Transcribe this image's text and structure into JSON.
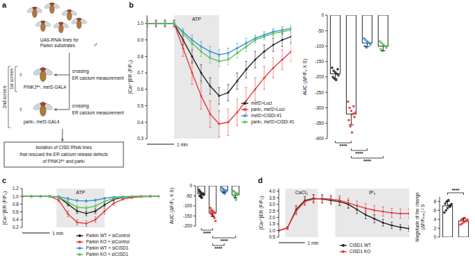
{
  "diagram": {
    "panel_label": "a",
    "library_label": [
      "UAS-RNAi lines for",
      "Parkin substrates"
    ],
    "male_symbol": "♂",
    "screens": [
      "1st screen",
      "2nd screen"
    ],
    "crosses": [
      {
        "female_symbol": "♀",
        "genotype": "PINK1ᴮ⁹, mef2-GAL4",
        "action": "crossing",
        "readout": "ER calcium measurement"
      },
      {
        "female_symbol": "♀",
        "genotype": "park¹, mef2-GAL4",
        "action": "crossing",
        "readout": "ER calcium measurement"
      }
    ],
    "result": [
      "Isolation of CISD RNAi lines",
      "that rescued the ER calcium release defects",
      "of PINK1ᴮ⁹ and park¹"
    ]
  },
  "chart_data": [
    {
      "type": "line",
      "panel_label": "b",
      "y_label": "[Ca²⁺]ER (F/F₀)",
      "x": [
        0,
        20,
        40,
        60,
        80,
        100,
        120,
        140,
        160,
        180,
        200,
        220,
        240,
        260,
        280,
        300,
        320
      ],
      "xlim": [
        0,
        320
      ],
      "ylim": [
        0.3,
        1.05
      ],
      "yticks": [
        0.3,
        0.4,
        0.5,
        0.6,
        0.7,
        0.8,
        0.9,
        {
          "value": 1,
          "label": "1.0"
        }
      ],
      "tick_labels": "y",
      "legend": "lower right",
      "annotations": [
        {
          "text": "ATP",
          "x_start": 60,
          "x_end": 160
        }
      ],
      "scale_bar": {
        "text": "1 min",
        "length": 60
      },
      "series": [
        {
          "name": "mef2>Luci",
          "color": "#222222",
          "values": [
            1,
            1,
            1,
            1,
            0.9,
            0.8,
            0.7,
            0.62,
            0.56,
            0.58,
            0.65,
            0.72,
            0.78,
            0.83,
            0.87,
            0.9,
            0.92
          ],
          "errors": [
            0.02,
            0.02,
            0.02,
            0.02,
            0.03,
            0.04,
            0.05,
            0.05,
            0.05,
            0.05,
            0.05,
            0.05,
            0.05,
            0.04,
            0.04,
            0.04,
            0.04
          ]
        },
        {
          "name": "park¹, mef2>Luci",
          "color": "#e8363a",
          "values": [
            1,
            1,
            1,
            1,
            0.85,
            0.7,
            0.56,
            0.45,
            0.39,
            0.4,
            0.46,
            0.53,
            0.6,
            0.67,
            0.73,
            0.78,
            0.83
          ],
          "errors": [
            0.02,
            0.02,
            0.02,
            0.02,
            0.05,
            0.07,
            0.08,
            0.08,
            0.08,
            0.08,
            0.08,
            0.08,
            0.07,
            0.07,
            0.06,
            0.06,
            0.06
          ]
        },
        {
          "name": "mef2>CISDi #1",
          "color": "#3a8fd6",
          "values": [
            1,
            1,
            1,
            1,
            0.95,
            0.9,
            0.86,
            0.83,
            0.81,
            0.82,
            0.85,
            0.88,
            0.91,
            0.93,
            0.95,
            0.96,
            0.97
          ],
          "errors": [
            0.01,
            0.01,
            0.01,
            0.01,
            0.02,
            0.03,
            0.03,
            0.03,
            0.03,
            0.03,
            0.03,
            0.03,
            0.02,
            0.02,
            0.02,
            0.02,
            0.02
          ]
        },
        {
          "name": "park¹, mef2>CISDi #1",
          "color": "#5cc05a",
          "values": [
            1,
            1,
            1,
            1,
            0.94,
            0.88,
            0.83,
            0.79,
            0.77,
            0.78,
            0.82,
            0.86,
            0.9,
            0.92,
            0.94,
            0.95,
            0.96
          ],
          "errors": [
            0.01,
            0.01,
            0.01,
            0.01,
            0.02,
            0.03,
            0.03,
            0.03,
            0.03,
            0.03,
            0.03,
            0.03,
            0.02,
            0.02,
            0.02,
            0.02,
            0.02
          ]
        }
      ]
    },
    {
      "type": "bar",
      "y_label": "AUC (ΔF/F₀ X S)",
      "categories": [
        null,
        null,
        null,
        null
      ],
      "values": [
        -190,
        -320,
        -90,
        -100
      ],
      "errors": [
        15,
        35,
        12,
        15
      ],
      "colors": [
        "#222222",
        "#e8363a",
        "#3a8fd6",
        "#5cc05a"
      ],
      "points": [
        [
          -170,
          -180,
          -185,
          -190,
          -195,
          -200,
          -205,
          -210,
          -175
        ],
        [
          -280,
          -300,
          -310,
          -320,
          -330,
          -340,
          -360,
          -380,
          -295,
          -315
        ],
        [
          -75,
          -80,
          -85,
          -90,
          -95,
          -100,
          -105,
          -88
        ],
        [
          -85,
          -90,
          -95,
          -100,
          -105,
          -110,
          -115,
          -98
        ]
      ],
      "ylim": [
        -400,
        0
      ],
      "yticks": [
        0,
        -50,
        -100,
        -150,
        -200,
        -250,
        -300,
        -350,
        -400
      ],
      "tick_labels": "y",
      "significance": [
        {
          "from": 0,
          "to": 1,
          "label": "****"
        },
        {
          "from": 1,
          "to": 2,
          "label": "****"
        },
        {
          "from": 1,
          "to": 3,
          "label": "****"
        }
      ]
    },
    {
      "type": "line",
      "panel_label": "c",
      "y_label": "[Ca²⁺]ER (F/F₀)",
      "x": [
        0,
        20,
        40,
        60,
        80,
        100,
        120,
        140,
        160,
        180,
        200,
        220,
        240,
        260,
        280,
        300
      ],
      "xlim": [
        0,
        300
      ],
      "ylim": [
        0.2,
        1.2
      ],
      "yticks": [
        0.2,
        0.4,
        0.6,
        0.8,
        {
          "value": 1,
          "label": "1.0"
        },
        1.2
      ],
      "tick_labels": "y",
      "legend": "below",
      "annotations": [
        {
          "text": "ATP",
          "x_start": 75,
          "x_end": 180
        }
      ],
      "scale_bar": {
        "text": "1 min",
        "length": 60
      },
      "series": [
        {
          "name": "Parkin WT + siControl",
          "color": "#222222",
          "values": [
            1,
            1,
            1,
            1,
            0.98,
            0.8,
            0.62,
            0.56,
            0.62,
            0.78,
            0.92,
            0.97,
            0.99,
            1,
            1,
            1
          ],
          "errors": [
            0.02,
            0.02,
            0.02,
            0.02,
            0.03,
            0.05,
            0.06,
            0.06,
            0.06,
            0.05,
            0.04,
            0.03,
            0.02,
            0.02,
            0.02,
            0.02
          ]
        },
        {
          "name": "Parkin KO + siControl",
          "color": "#e8363a",
          "values": [
            1,
            1,
            1,
            1,
            0.9,
            0.55,
            0.33,
            0.3,
            0.4,
            0.62,
            0.82,
            0.93,
            0.97,
            0.99,
            1,
            1
          ],
          "errors": [
            0.02,
            0.02,
            0.02,
            0.02,
            0.04,
            0.07,
            0.07,
            0.07,
            0.07,
            0.07,
            0.05,
            0.03,
            0.02,
            0.02,
            0.02,
            0.02
          ]
        },
        {
          "name": "Parkin WT + siCISD1",
          "color": "#3a8fd6",
          "values": [
            1,
            1,
            1,
            1,
            0.99,
            0.94,
            0.89,
            0.88,
            0.9,
            0.95,
            0.98,
            0.99,
            1,
            1,
            1,
            1
          ],
          "errors": [
            0.01,
            0.01,
            0.01,
            0.01,
            0.02,
            0.03,
            0.03,
            0.03,
            0.03,
            0.02,
            0.02,
            0.01,
            0.01,
            0.01,
            0.01,
            0.01
          ]
        },
        {
          "name": "Parkin KO + siCISD1",
          "color": "#5cc05a",
          "values": [
            1,
            1,
            1,
            1,
            0.98,
            0.85,
            0.72,
            0.7,
            0.75,
            0.87,
            0.95,
            0.98,
            1,
            1,
            1,
            1
          ],
          "errors": [
            0.01,
            0.01,
            0.01,
            0.01,
            0.02,
            0.04,
            0.05,
            0.05,
            0.05,
            0.04,
            0.03,
            0.02,
            0.01,
            0.01,
            0.01,
            0.01
          ]
        }
      ]
    },
    {
      "type": "bar",
      "y_label": "AUC (ΔF/F₀ X S)",
      "categories": [
        null,
        null,
        null,
        null
      ],
      "values": [
        -40,
        -135,
        -25,
        -45
      ],
      "errors": [
        12,
        18,
        8,
        14
      ],
      "colors": [
        "#222222",
        "#e8363a",
        "#3a8fd6",
        "#5cc05a"
      ],
      "points": [
        [
          -20,
          -28,
          -35,
          -40,
          -45,
          -50,
          -55,
          -60,
          -38,
          -42,
          -30,
          -48
        ],
        [
          -110,
          -120,
          -125,
          -130,
          -135,
          -140,
          -145,
          -150,
          -160,
          -175,
          -128,
          -138
        ],
        [
          -10,
          -15,
          -20,
          -25,
          -28,
          -30,
          -35,
          -40,
          -22
        ],
        [
          -25,
          -30,
          -35,
          -40,
          -45,
          -50,
          -60,
          -70,
          -38
        ]
      ],
      "ylim": [
        -200,
        0
      ],
      "yticks": [
        0,
        -50,
        -100,
        -150,
        -200
      ],
      "tick_labels": "y",
      "significance": [
        {
          "from": 0,
          "to": 1,
          "label": "****"
        },
        {
          "from": 1,
          "to": 3,
          "label": "****"
        },
        {
          "from": 1,
          "to": 2,
          "label": "****"
        }
      ]
    },
    {
      "type": "line",
      "panel_label": "d",
      "y_label": "[Ca²⁺]ER (F/F₀)",
      "x": [
        0,
        20,
        40,
        60,
        80,
        100,
        120,
        140,
        160,
        180,
        200,
        220,
        240,
        260,
        280,
        300
      ],
      "xlim": [
        0,
        300
      ],
      "ylim": [
        0.5,
        4.2
      ],
      "yticks": [
        0.5,
        {
          "value": 1,
          "label": "1.0"
        },
        1.5,
        {
          "value": 2,
          "label": "2.0"
        },
        2.5,
        {
          "value": 3,
          "label": "3.0"
        },
        3.5,
        {
          "value": 4,
          "label": "4.0"
        }
      ],
      "tick_labels": "y",
      "legend": "below",
      "annotations": [
        {
          "text": "CaCl₂",
          "x_start": 15,
          "x_end": 90
        },
        {
          "text": "IP₃",
          "x_start": 130,
          "x_end": 300
        }
      ],
      "scale_bar": {
        "text": "1 min",
        "length": 60
      },
      "series": [
        {
          "name": "CISD1 WT",
          "color": "#222222",
          "values": [
            1,
            1.2,
            2.6,
            3.3,
            3.45,
            3.4,
            3.3,
            3.2,
            3.0,
            2.6,
            2.2,
            1.9,
            1.6,
            1.4,
            1.25,
            1.15
          ],
          "errors": [
            0.05,
            0.1,
            0.3,
            0.3,
            0.3,
            0.3,
            0.3,
            0.3,
            0.3,
            0.3,
            0.3,
            0.3,
            0.25,
            0.25,
            0.2,
            0.2
          ]
        },
        {
          "name": "CISD1 KO",
          "color": "#e8363a",
          "values": [
            1,
            1.2,
            2.5,
            3.2,
            3.4,
            3.45,
            3.4,
            3.3,
            3.1,
            2.9,
            2.7,
            2.55,
            2.45,
            2.35,
            2.3,
            2.3
          ],
          "errors": [
            0.05,
            0.1,
            0.3,
            0.3,
            0.3,
            0.3,
            0.3,
            0.35,
            0.35,
            0.35,
            0.35,
            0.35,
            0.35,
            0.35,
            0.35,
            0.35
          ]
        }
      ]
    },
    {
      "type": "bar",
      "y_label": [
        "Magnitude of the change",
        "(ΔF/Fₘₐₓ) / S"
      ],
      "categories": [
        null,
        null
      ],
      "values": [
        7.0,
        3.6
      ],
      "errors": [
        1.0,
        0.6
      ],
      "colors": [
        "#222222",
        "#e8363a"
      ],
      "points": [
        [
          5.5,
          6.0,
          6.5,
          7.0,
          7.2,
          7.5,
          8.0,
          8.3,
          6.8,
          7.4
        ],
        [
          2.8,
          3.0,
          3.3,
          3.5,
          3.6,
          3.8,
          4.0,
          4.3,
          3.7,
          3.9
        ]
      ],
      "ylim": [
        0,
        9
      ],
      "yticks": [
        0,
        2,
        4,
        6,
        8
      ],
      "tick_labels": "y",
      "significance": [
        {
          "from": 0,
          "to": 1,
          "label": "****"
        }
      ]
    }
  ]
}
